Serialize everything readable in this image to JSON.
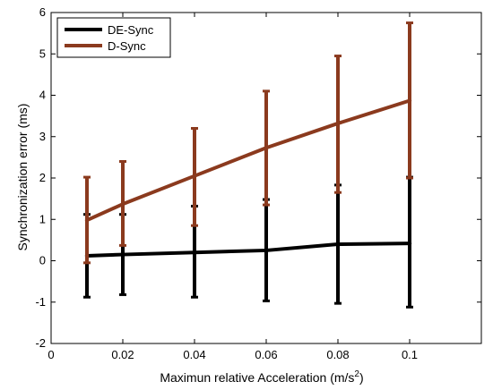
{
  "chart_data": {
    "type": "line",
    "title": "",
    "xlabel": "Maximun relative Acceleration (m/s",
    "xlabel_sup": "2",
    "xlabel_end": ")",
    "ylabel": "Synchronization error (ms)",
    "xlim": [
      0,
      0.12
    ],
    "ylim": [
      -2,
      6
    ],
    "x_ticks": [
      0,
      0.02,
      0.04,
      0.06,
      0.08,
      0.1
    ],
    "x_tick_labels": [
      "0",
      "0.02",
      "0.04",
      "0.06",
      "0.08",
      "0.1"
    ],
    "y_ticks": [
      -2,
      -1,
      0,
      1,
      2,
      3,
      4,
      5,
      6
    ],
    "y_tick_labels": [
      "-2",
      "-1",
      "0",
      "1",
      "2",
      "3",
      "4",
      "5",
      "6"
    ],
    "grid": false,
    "legend_position": "top-left",
    "series": [
      {
        "name": "DE-Sync",
        "color": "#000000",
        "x": [
          0.01,
          0.02,
          0.04,
          0.06,
          0.08,
          0.1
        ],
        "y": [
          0.12,
          0.15,
          0.2,
          0.25,
          0.4,
          0.42
        ],
        "err_low": [
          -0.88,
          -0.82,
          -0.88,
          -0.97,
          -1.03,
          -1.12
        ],
        "err_high": [
          1.12,
          1.12,
          1.32,
          1.48,
          1.83,
          2.02
        ]
      },
      {
        "name": "D-Sync",
        "color": "#8b3a1e",
        "x": [
          0.01,
          0.02,
          0.04,
          0.06,
          0.08,
          0.1
        ],
        "y": [
          0.98,
          1.37,
          2.05,
          2.73,
          3.32,
          3.87
        ],
        "err_low": [
          -0.05,
          0.37,
          0.85,
          1.35,
          1.65,
          2.0
        ],
        "err_high": [
          2.02,
          2.4,
          3.2,
          4.1,
          4.95,
          5.75
        ]
      }
    ]
  }
}
